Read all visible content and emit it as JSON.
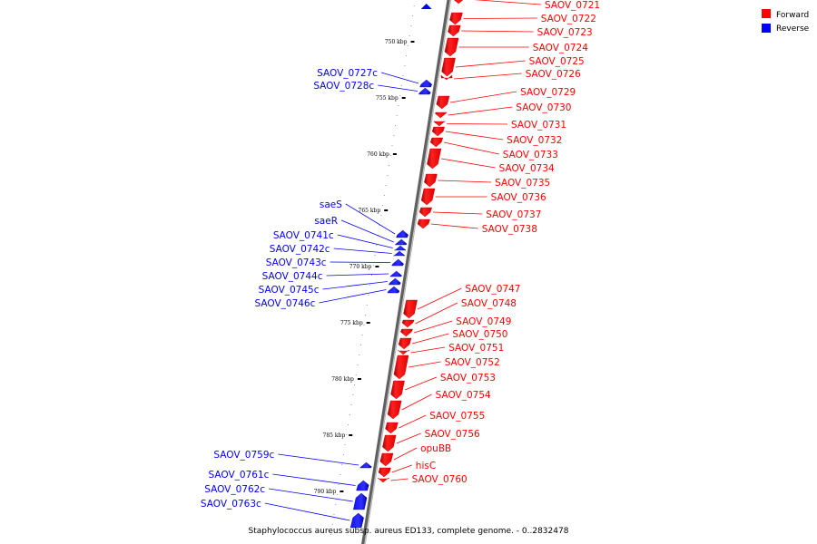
{
  "legend": {
    "forward": {
      "label": "Forward",
      "color": "#ff0000"
    },
    "reverse": {
      "label": "Reverse",
      "color": "#0000ff"
    }
  },
  "caption": "Staphylococcus aureus subsp. aureus ED133, complete genome. - 0..2832478",
  "ticks": [
    "750 kbp",
    "755 kbp",
    "760 kbp",
    "765 kbp",
    "770 kbp",
    "775 kbp",
    "780 kbp",
    "785 kbp",
    "790 kbp"
  ],
  "forward_genes": [
    "SAOV_0721",
    "SAOV_0722",
    "SAOV_0723",
    "SAOV_0724",
    "SAOV_0725",
    "SAOV_0726",
    "SAOV_0729",
    "SAOV_0730",
    "SAOV_0731",
    "SAOV_0732",
    "SAOV_0733",
    "SAOV_0734",
    "SAOV_0735",
    "SAOV_0736",
    "SAOV_0737",
    "SAOV_0738",
    "SAOV_0747",
    "SAOV_0748",
    "SAOV_0749",
    "SAOV_0750",
    "SAOV_0751",
    "SAOV_0752",
    "SAOV_0753",
    "SAOV_0754",
    "SAOV_0755",
    "SAOV_0756",
    "opuBB",
    "hisC",
    "SAOV_0760"
  ],
  "reverse_genes": [
    "SAOV_0727c",
    "SAOV_0728c",
    "saeS",
    "saeR",
    "SAOV_0741c",
    "SAOV_0742c",
    "SAOV_0743c",
    "SAOV_0744c",
    "SAOV_0745c",
    "SAOV_0746c",
    "SAOV_0759c",
    "SAOV_0761c",
    "SAOV_0762c",
    "SAOV_0763c"
  ]
}
